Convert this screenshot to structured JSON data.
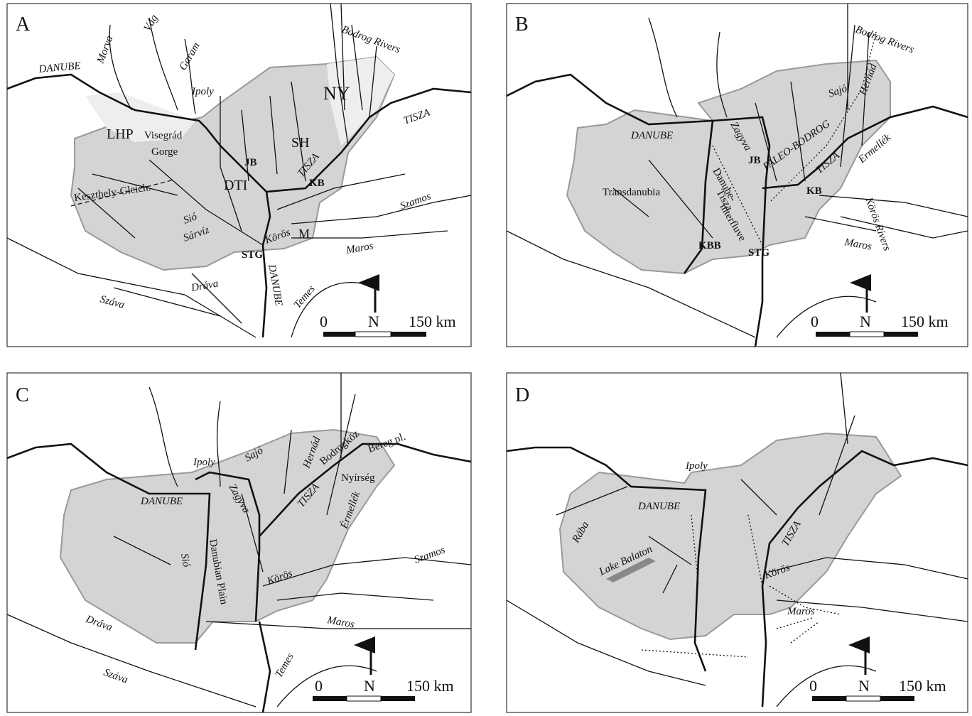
{
  "panels": [
    {
      "label": "A",
      "labels": [
        "DANUBE",
        "Morva",
        "Vág",
        "Garam",
        "Bodrog Rivers",
        "Ipoly",
        "NY",
        "TISZA",
        "LHP",
        "Visegrád",
        "Gorge",
        "SH",
        "JB",
        "DTI",
        "TISZA",
        "KB",
        "Keszthely-Gleich.",
        "Sió",
        "Sárvíz",
        "Körös",
        "M",
        "Szamos",
        "STG",
        "Maros",
        "DANUBE",
        "Dráva",
        "Temes",
        "Száva"
      ],
      "scale": [
        "0",
        "N",
        "150 km"
      ]
    },
    {
      "label": "B",
      "labels": [
        "Bodrog Rivers",
        "Hernád",
        "Sajó",
        "PALEO-BODROG",
        "Ermellék",
        "DANUBE",
        "Zagyva",
        "JB",
        "TISZA",
        "Danube-",
        "Tisza",
        "interfluve",
        "Transdanubia",
        "KB",
        "Körös Rivers",
        "KBB",
        "STG",
        "Maros"
      ],
      "scale": [
        "0",
        "N",
        "150 km"
      ]
    },
    {
      "label": "C",
      "labels": [
        "Ipoly",
        "Sajó",
        "Hernád",
        "Bodrogköz",
        "Bereg pl.",
        "Nyírség",
        "DANUBE",
        "Zagyva",
        "TISZA",
        "Érmellék",
        "Danubian Plain",
        "Sió",
        "Körös",
        "Szamos",
        "Dráva",
        "Maros",
        "Száva",
        "Temes"
      ],
      "scale": [
        "0",
        "N",
        "150 km"
      ]
    },
    {
      "label": "D",
      "labels": [
        "Ipoly",
        "DANUBE",
        "Rába",
        "TISZA",
        "Lake Balaton",
        "Körös",
        "Maros"
      ],
      "scale": [
        "0",
        "N",
        "150 km"
      ]
    }
  ]
}
